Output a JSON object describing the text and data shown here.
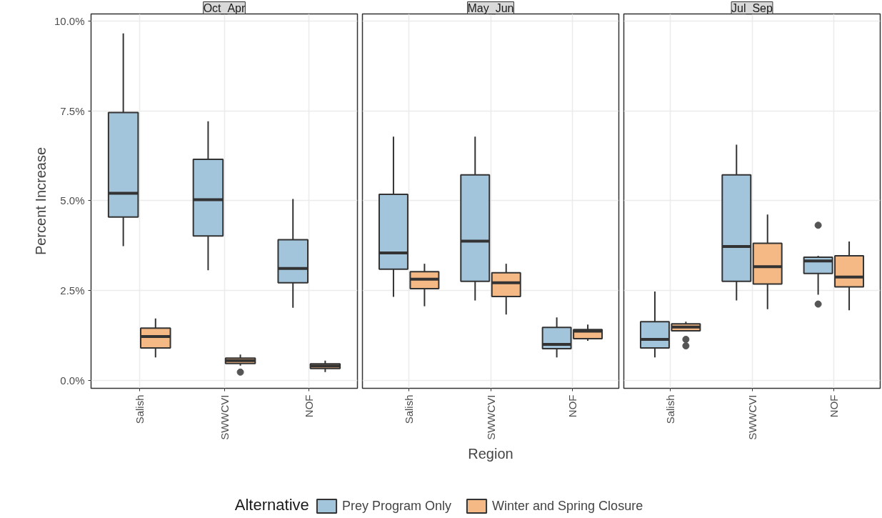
{
  "chart_data": [
    {
      "type": "box",
      "title": "Oct_Apr",
      "ylabel": "Percent Increase",
      "categories": [
        "Salish",
        "SWWCVI",
        "NOF"
      ],
      "ylim": [
        -0.21,
        10.19
      ],
      "yticks": [
        {
          "value": 0,
          "label": "0.0%"
        },
        {
          "value": 2.5,
          "label": "2.5%"
        },
        {
          "value": 5,
          "label": "5.0%"
        },
        {
          "value": 7.5,
          "label": "7.5%"
        },
        {
          "value": 10,
          "label": "10.0%"
        }
      ],
      "grid": true,
      "series": [
        {
          "color": "#a3c5dc",
          "boxes": [
            {
              "low": 3.74,
              "q1": 4.55,
              "median": 5.21,
              "q3": 7.45,
              "high": 9.65
            },
            {
              "low": 3.07,
              "q1": 4.02,
              "median": 5.03,
              "q3": 6.15,
              "high": 7.21
            },
            {
              "low": 2.03,
              "q1": 2.72,
              "median": 3.12,
              "q3": 3.92,
              "high": 5.05
            }
          ]
        },
        {
          "color": "#f5b985",
          "boxes": [
            {
              "low": 0.65,
              "q1": 0.91,
              "median": 1.23,
              "q3": 1.46,
              "high": 1.73
            },
            {
              "low": 0.42,
              "q1": 0.48,
              "median": 0.56,
              "q3": 0.63,
              "high": 0.73,
              "outliers": [
                0.24
              ]
            },
            {
              "low": 0.24,
              "q1": 0.34,
              "median": 0.41,
              "q3": 0.47,
              "high": 0.56
            }
          ]
        }
      ]
    },
    {
      "type": "box",
      "title": "May_Jun",
      "xlabel": "Region",
      "legend": "bottom",
      "legend_title": "Alternative",
      "categories": [
        "Salish",
        "SWWCVI",
        "NOF"
      ],
      "ylim": [
        -0.21,
        10.19
      ],
      "yticks": [
        0,
        2.5,
        5,
        7.5,
        10
      ],
      "grid": true,
      "tick_labels": "x",
      "series": [
        {
          "name": "Prey Program Only",
          "color": "#a3c5dc",
          "boxes": [
            {
              "low": 2.33,
              "q1": 3.1,
              "median": 3.55,
              "q3": 5.18,
              "high": 6.78
            },
            {
              "low": 2.23,
              "q1": 2.76,
              "median": 3.88,
              "q3": 5.72,
              "high": 6.78
            },
            {
              "low": 0.65,
              "q1": 0.89,
              "median": 1.01,
              "q3": 1.48,
              "high": 1.76
            }
          ]
        },
        {
          "name": "Winter and Spring Closure",
          "color": "#f5b985",
          "boxes": [
            {
              "low": 2.07,
              "q1": 2.56,
              "median": 2.82,
              "q3": 3.03,
              "high": 3.25
            },
            {
              "low": 1.84,
              "q1": 2.34,
              "median": 2.72,
              "q3": 3.0,
              "high": 3.25
            },
            {
              "low": 1.11,
              "q1": 1.17,
              "median": 1.38,
              "q3": 1.42,
              "high": 1.56
            }
          ]
        }
      ]
    },
    {
      "type": "box",
      "title": "Jul_Sep",
      "categories": [
        "Salish",
        "SWWCVI",
        "NOF"
      ],
      "ylim": [
        -0.21,
        10.19
      ],
      "yticks": [
        0,
        2.5,
        5,
        7.5,
        10
      ],
      "grid": true,
      "tick_labels": "x",
      "series": [
        {
          "color": "#a3c5dc",
          "boxes": [
            {
              "low": 0.65,
              "q1": 0.91,
              "median": 1.15,
              "q3": 1.64,
              "high": 2.48
            },
            {
              "low": 2.23,
              "q1": 2.76,
              "median": 3.73,
              "q3": 5.72,
              "high": 6.56
            },
            {
              "low": 2.39,
              "q1": 2.98,
              "median": 3.33,
              "q3": 3.43,
              "high": 3.47,
              "outliers": [
                4.32,
                2.13
              ]
            }
          ]
        },
        {
          "color": "#f5b985",
          "boxes": [
            {
              "low": 1.39,
              "q1": 1.39,
              "median": 1.49,
              "q3": 1.58,
              "high": 1.64,
              "outliers": [
                1.15,
                0.97
              ]
            },
            {
              "low": 1.99,
              "q1": 2.69,
              "median": 3.17,
              "q3": 3.82,
              "high": 4.62
            },
            {
              "low": 1.96,
              "q1": 2.61,
              "median": 2.88,
              "q3": 3.47,
              "high": 3.87
            }
          ]
        }
      ]
    }
  ]
}
